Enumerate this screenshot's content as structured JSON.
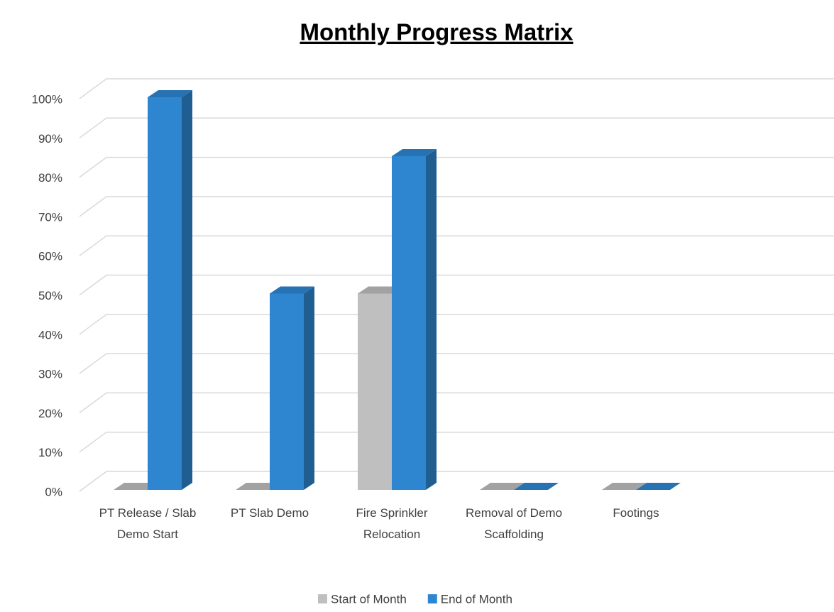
{
  "chart_data": {
    "type": "bar3d",
    "title": "Monthly Progress Matrix",
    "categories": [
      "PT Release / Slab Demo Start",
      "PT Slab Demo",
      "Fire Sprinkler Relocation",
      "Removal of Demo Scaffolding",
      "Footings"
    ],
    "series": [
      {
        "name": "Start of Month",
        "color": "#bfbfbf",
        "values": [
          0,
          0,
          50,
          0,
          0
        ]
      },
      {
        "name": "End of Month",
        "color": "#2e86d1",
        "values": [
          100,
          50,
          85,
          0,
          0
        ]
      }
    ],
    "ylim": [
      0,
      100
    ],
    "yticks": [
      {
        "value": 0,
        "label": "0%"
      },
      {
        "value": 10,
        "label": "10%"
      },
      {
        "value": 20,
        "label": "20%"
      },
      {
        "value": 30,
        "label": "30%"
      },
      {
        "value": 40,
        "label": "40%"
      },
      {
        "value": 50,
        "label": "50%"
      },
      {
        "value": 60,
        "label": "60%"
      },
      {
        "value": 70,
        "label": "70%"
      },
      {
        "value": 80,
        "label": "80%"
      },
      {
        "value": 90,
        "label": "90%"
      },
      {
        "value": 100,
        "label": "100%"
      }
    ],
    "grid": true,
    "legend": "bottom"
  }
}
